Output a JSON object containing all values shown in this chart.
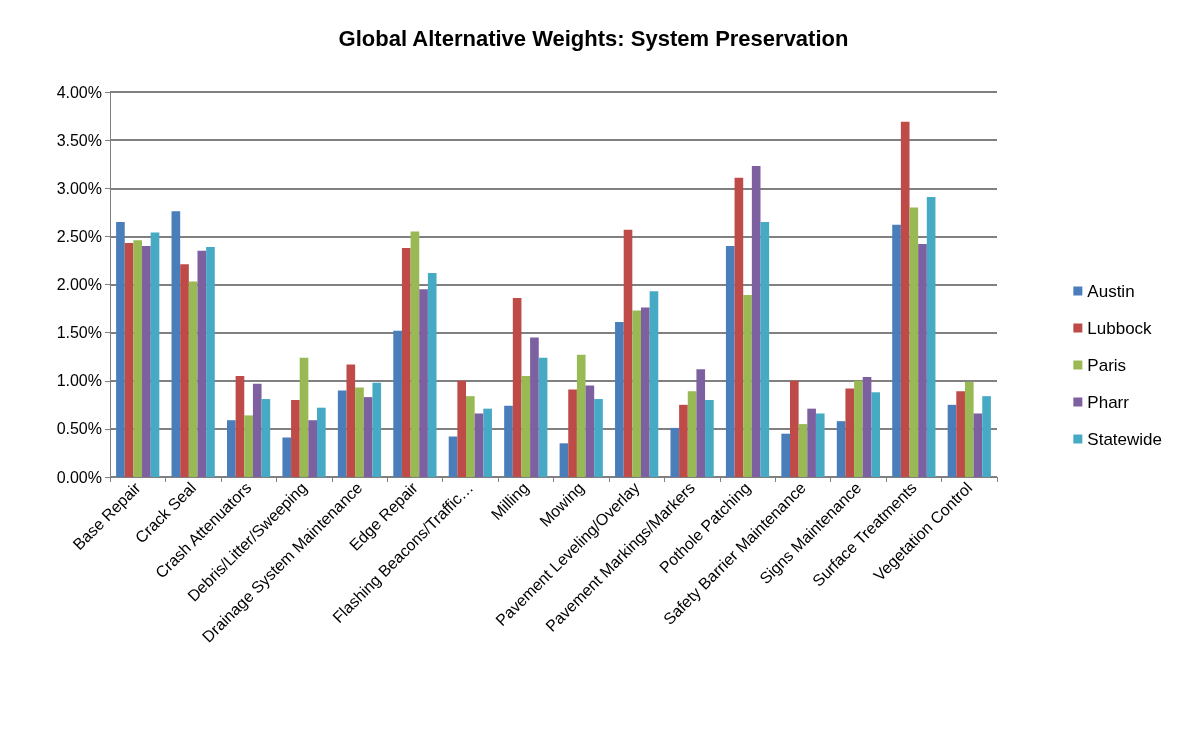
{
  "chart_data": {
    "type": "bar",
    "title": "Global Alternative Weights: System Preservation",
    "categories": [
      "Base Repair",
      "Crack Seal",
      "Crash Attenuators",
      "Debris/Litter/Sweeping",
      "Drainage System Maintenance",
      "Edge Repair",
      "Flashing Beacons/Traffic…",
      "Milling",
      "Mowing",
      "Pavement Leveling/Overlay",
      "Pavement Markings/Markers",
      "Pothole Patching",
      "Safety Barrier Maintenance",
      "Signs Maintenance",
      "Surface Treatments",
      "Vegetation Control"
    ],
    "series": [
      {
        "name": "Austin",
        "color": "#4a7ebb",
        "values": [
          2.65,
          2.76,
          0.59,
          0.41,
          0.9,
          1.52,
          0.42,
          0.74,
          0.35,
          1.61,
          0.51,
          2.4,
          0.45,
          0.58,
          2.62,
          0.75
        ]
      },
      {
        "name": "Lubbock",
        "color": "#be4b48",
        "values": [
          2.43,
          2.21,
          1.05,
          0.8,
          1.17,
          2.38,
          1.0,
          1.86,
          0.91,
          2.57,
          0.75,
          3.11,
          1.0,
          0.92,
          3.69,
          0.89
        ]
      },
      {
        "name": "Paris",
        "color": "#98b954",
        "values": [
          2.46,
          2.03,
          0.64,
          1.24,
          0.93,
          2.55,
          0.84,
          1.05,
          1.27,
          1.73,
          0.89,
          1.89,
          0.55,
          1.0,
          2.8,
          0.99
        ]
      },
      {
        "name": "Pharr",
        "color": "#7d60a0",
        "values": [
          2.4,
          2.35,
          0.97,
          0.59,
          0.83,
          1.95,
          0.66,
          1.45,
          0.95,
          1.76,
          1.12,
          3.23,
          0.71,
          1.04,
          2.42,
          0.66
        ]
      },
      {
        "name": "Statewide",
        "color": "#46aac5",
        "values": [
          2.54,
          2.39,
          0.81,
          0.72,
          0.98,
          2.12,
          0.71,
          1.24,
          0.81,
          1.93,
          0.8,
          2.65,
          0.66,
          0.88,
          2.91,
          0.84
        ]
      }
    ],
    "ylim": [
      0,
      4
    ],
    "yticks": [
      {
        "value": 0,
        "label": "0.00%"
      },
      {
        "value": 0.5,
        "label": "0.50%"
      },
      {
        "value": 1,
        "label": "1.00%"
      },
      {
        "value": 1.5,
        "label": "1.50%"
      },
      {
        "value": 2,
        "label": "2.00%"
      },
      {
        "value": 2.5,
        "label": "2.50%"
      },
      {
        "value": 3,
        "label": "3.00%"
      },
      {
        "value": 3.5,
        "label": "3.50%"
      },
      {
        "value": 4,
        "label": "4.00%"
      }
    ],
    "grid": "y",
    "legend": "right"
  }
}
